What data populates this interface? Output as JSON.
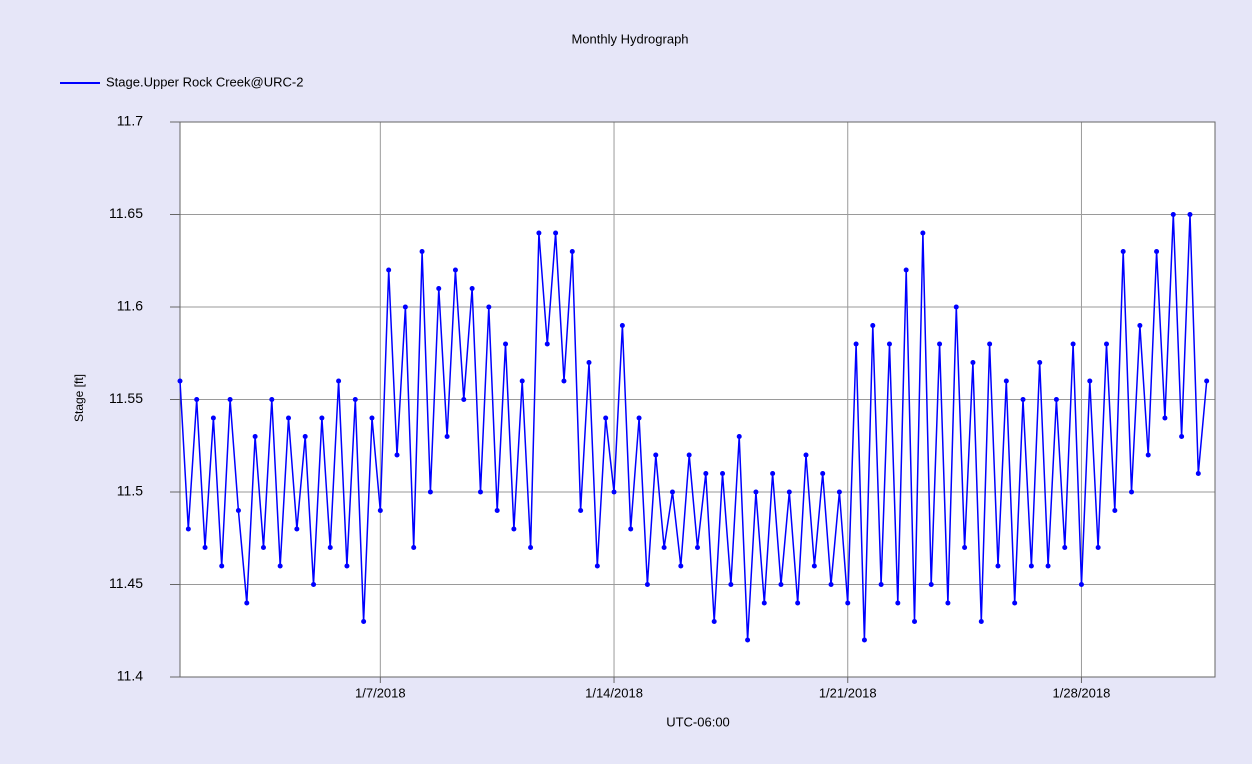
{
  "chart_data": {
    "type": "line",
    "title": "Monthly Hydrograph",
    "ylabel": "Stage [ft]",
    "xlabel": "UTC-06:00",
    "xlim": [
      "2018-01-01T00:00",
      "2018-02-01T00:00"
    ],
    "xticks": [
      {
        "value": "2018-01-07T00:00",
        "label": "1/7/2018"
      },
      {
        "value": "2018-01-14T00:00",
        "label": "1/14/2018"
      },
      {
        "value": "2018-01-21T00:00",
        "label": "1/21/2018"
      },
      {
        "value": "2018-01-28T00:00",
        "label": "1/28/2018"
      }
    ],
    "ylim": [
      11.4,
      11.7
    ],
    "yticks": [
      11.4,
      11.45,
      11.5,
      11.55,
      11.6,
      11.65,
      11.7
    ],
    "grid": true,
    "legend": "top-left",
    "markers": true,
    "x": [
      "2018-01-01T00:00",
      "2018-01-01T06:00",
      "2018-01-01T12:00",
      "2018-01-01T18:00",
      "2018-01-02T00:00",
      "2018-01-02T06:00",
      "2018-01-02T12:00",
      "2018-01-02T18:00",
      "2018-01-03T00:00",
      "2018-01-03T06:00",
      "2018-01-03T12:00",
      "2018-01-03T18:00",
      "2018-01-04T00:00",
      "2018-01-04T06:00",
      "2018-01-04T12:00",
      "2018-01-04T18:00",
      "2018-01-05T00:00",
      "2018-01-05T06:00",
      "2018-01-05T12:00",
      "2018-01-05T18:00",
      "2018-01-06T00:00",
      "2018-01-06T06:00",
      "2018-01-06T12:00",
      "2018-01-06T18:00",
      "2018-01-07T00:00",
      "2018-01-07T06:00",
      "2018-01-07T12:00",
      "2018-01-07T18:00",
      "2018-01-08T00:00",
      "2018-01-08T06:00",
      "2018-01-08T12:00",
      "2018-01-08T18:00",
      "2018-01-09T00:00",
      "2018-01-09T06:00",
      "2018-01-09T12:00",
      "2018-01-09T18:00",
      "2018-01-10T00:00",
      "2018-01-10T06:00",
      "2018-01-10T12:00",
      "2018-01-10T18:00",
      "2018-01-11T00:00",
      "2018-01-11T06:00",
      "2018-01-11T12:00",
      "2018-01-11T18:00",
      "2018-01-12T00:00",
      "2018-01-12T06:00",
      "2018-01-12T12:00",
      "2018-01-12T18:00",
      "2018-01-13T00:00",
      "2018-01-13T06:00",
      "2018-01-13T12:00",
      "2018-01-13T18:00",
      "2018-01-14T00:00",
      "2018-01-14T06:00",
      "2018-01-14T12:00",
      "2018-01-14T18:00",
      "2018-01-15T00:00",
      "2018-01-15T06:00",
      "2018-01-15T12:00",
      "2018-01-15T18:00",
      "2018-01-16T00:00",
      "2018-01-16T06:00",
      "2018-01-16T12:00",
      "2018-01-16T18:00",
      "2018-01-17T00:00",
      "2018-01-17T06:00",
      "2018-01-17T12:00",
      "2018-01-17T18:00",
      "2018-01-18T00:00",
      "2018-01-18T06:00",
      "2018-01-18T12:00",
      "2018-01-18T18:00",
      "2018-01-19T00:00",
      "2018-01-19T06:00",
      "2018-01-19T12:00",
      "2018-01-19T18:00",
      "2018-01-20T00:00",
      "2018-01-20T06:00",
      "2018-01-20T12:00",
      "2018-01-20T18:00",
      "2018-01-21T00:00",
      "2018-01-21T06:00",
      "2018-01-21T12:00",
      "2018-01-21T18:00",
      "2018-01-22T00:00",
      "2018-01-22T06:00",
      "2018-01-22T12:00",
      "2018-01-22T18:00",
      "2018-01-23T00:00",
      "2018-01-23T06:00",
      "2018-01-23T12:00",
      "2018-01-23T18:00",
      "2018-01-24T00:00",
      "2018-01-24T06:00",
      "2018-01-24T12:00",
      "2018-01-24T18:00",
      "2018-01-25T00:00",
      "2018-01-25T06:00",
      "2018-01-25T12:00",
      "2018-01-25T18:00",
      "2018-01-26T00:00",
      "2018-01-26T06:00",
      "2018-01-26T12:00",
      "2018-01-26T18:00",
      "2018-01-27T00:00",
      "2018-01-27T06:00",
      "2018-01-27T12:00",
      "2018-01-27T18:00",
      "2018-01-28T00:00",
      "2018-01-28T06:00",
      "2018-01-28T12:00",
      "2018-01-28T18:00",
      "2018-01-29T00:00",
      "2018-01-29T06:00",
      "2018-01-29T12:00",
      "2018-01-29T18:00",
      "2018-01-30T00:00",
      "2018-01-30T06:00",
      "2018-01-30T12:00",
      "2018-01-30T18:00",
      "2018-01-31T00:00",
      "2018-01-31T06:00",
      "2018-01-31T12:00",
      "2018-01-31T18:00"
    ],
    "series": [
      {
        "name": "Stage.Upper Rock Creek@URC-2",
        "color": "#0000ff",
        "values": [
          11.56,
          11.48,
          11.55,
          11.47,
          11.54,
          11.46,
          11.55,
          11.49,
          11.44,
          11.53,
          11.47,
          11.55,
          11.46,
          11.54,
          11.48,
          11.53,
          11.45,
          11.54,
          11.47,
          11.56,
          11.46,
          11.55,
          11.43,
          11.54,
          11.49,
          11.62,
          11.52,
          11.6,
          11.47,
          11.63,
          11.5,
          11.61,
          11.53,
          11.62,
          11.55,
          11.61,
          11.5,
          11.6,
          11.49,
          11.58,
          11.48,
          11.56,
          11.47,
          11.64,
          11.58,
          11.64,
          11.56,
          11.63,
          11.49,
          11.57,
          11.46,
          11.54,
          11.5,
          11.59,
          11.48,
          11.54,
          11.45,
          11.52,
          11.47,
          11.5,
          11.46,
          11.52,
          11.47,
          11.51,
          11.43,
          11.51,
          11.45,
          11.53,
          11.42,
          11.5,
          11.44,
          11.51,
          11.45,
          11.5,
          11.44,
          11.52,
          11.46,
          11.51,
          11.45,
          11.5,
          11.44,
          11.58,
          11.42,
          11.59,
          11.45,
          11.58,
          11.44,
          11.62,
          11.43,
          11.64,
          11.45,
          11.58,
          11.44,
          11.6,
          11.47,
          11.57,
          11.43,
          11.58,
          11.46,
          11.56,
          11.44,
          11.55,
          11.46,
          11.57,
          11.46,
          11.55,
          11.47,
          11.58,
          11.45,
          11.56,
          11.47,
          11.58,
          11.49,
          11.63,
          11.5,
          11.59,
          11.52,
          11.63,
          11.54,
          11.65,
          11.53,
          11.65,
          11.51,
          11.56
        ]
      }
    ]
  }
}
